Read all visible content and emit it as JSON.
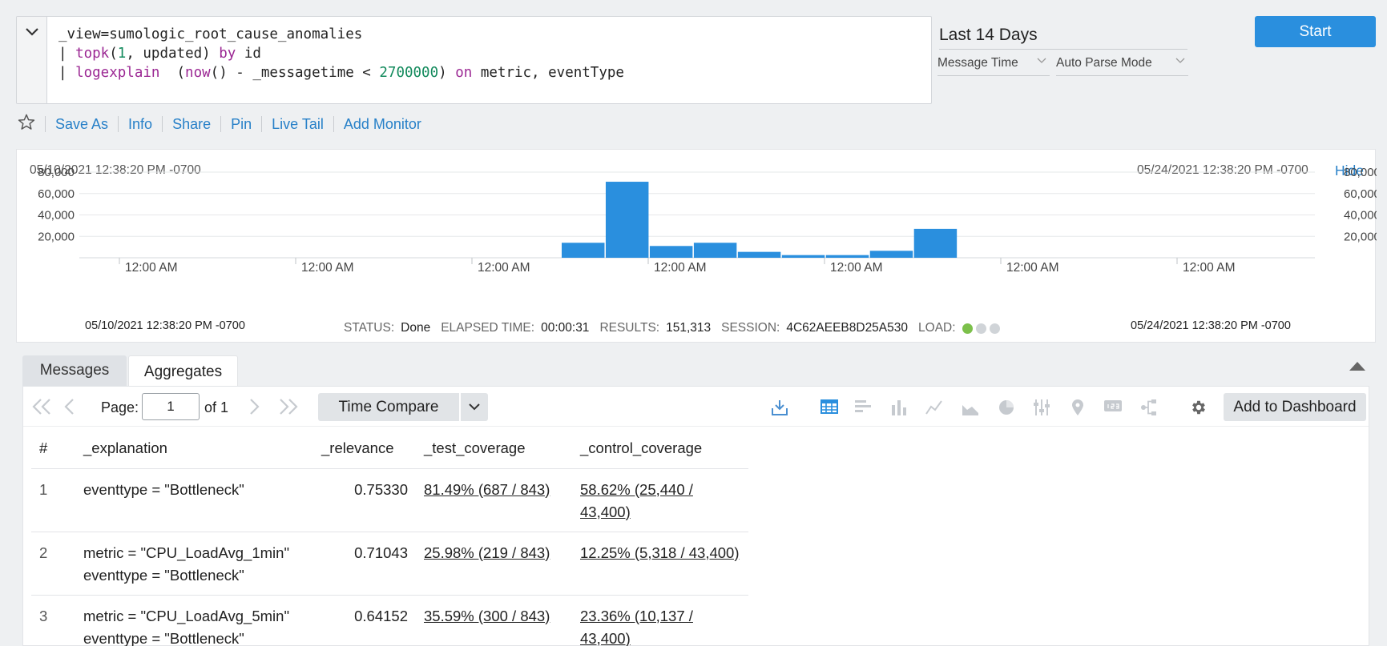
{
  "query": {
    "line1": "_view=sumologic_root_cause_anomalies",
    "line2": {
      "pipe": "| ",
      "fn": "topk",
      "args_open": "(",
      "num": "1",
      "args_rest": ", updated) ",
      "by": "by",
      "by_field": " id"
    },
    "line3": {
      "pipe": "| ",
      "fn": "logexplain",
      "pre": "  (",
      "now": "now",
      "mid": "() - _messagetime < ",
      "num": "2700000",
      "close": ") ",
      "on": "on",
      "fields": " metric, eventType"
    }
  },
  "time_range": "Last 14 Days",
  "time_field": "Message Time",
  "parse_mode": "Auto Parse Mode",
  "start_label": "Start",
  "actions": [
    "Save As",
    "Info",
    "Share",
    "Pin",
    "Live Tail",
    "Add Monitor"
  ],
  "histogram": {
    "start_time": "05/10/2021 12:38:20 PM -0700",
    "end_time": "05/24/2021 12:38:20 PM -0700",
    "hide_label": "Hide",
    "footer_start": "05/10/2021 12:38:20 PM -0700",
    "footer_end": "05/24/2021 12:38:20 PM -0700"
  },
  "status": {
    "status_label": "STATUS:",
    "status_value": "Done",
    "elapsed_label": "ELAPSED TIME:",
    "elapsed_value": "00:00:31",
    "results_label": "RESULTS:",
    "results_value": "151,313",
    "session_label": "SESSION:",
    "session_value": "4C62AEEB8D25A530",
    "load_label": "LOAD:"
  },
  "colors": {
    "accent": "#2a8fde",
    "bar": "#2a8fde",
    "progress": "#8cc63e",
    "load_on": "#7cc04b",
    "load_off": "#d0d4d8"
  },
  "tabs": {
    "messages": "Messages",
    "aggregates": "Aggregates"
  },
  "pager": {
    "page_label": "Page:",
    "page_value": "1",
    "of_label": "of 1"
  },
  "time_compare_label": "Time Compare",
  "add_dashboard_label": "Add to Dashboard",
  "table": {
    "columns": [
      "#",
      "_explanation",
      "_relevance",
      "_test_coverage",
      "_control_coverage"
    ],
    "rows": [
      {
        "idx": "1",
        "explanation": [
          "eventtype = \"Bottleneck\""
        ],
        "relevance": "0.75330",
        "test": "81.49% (687 / 843)",
        "control": "58.62% (25,440 / 43,400)"
      },
      {
        "idx": "2",
        "explanation": [
          "metric = \"CPU_LoadAvg_1min\"",
          "eventtype = \"Bottleneck\""
        ],
        "relevance": "0.71043",
        "test": "25.98% (219 / 843)",
        "control": "12.25% (5,318 / 43,400)"
      },
      {
        "idx": "3",
        "explanation": [
          "metric = \"CPU_LoadAvg_5min\"",
          "eventtype = \"Bottleneck\""
        ],
        "relevance": "0.64152",
        "test": "35.59% (300 / 843)",
        "control": "23.36% (10,137 / 43,400)"
      }
    ]
  },
  "chart_data": {
    "type": "bar",
    "ylim": [
      0,
      80000
    ],
    "yticks": [
      "80,000",
      "60,000",
      "40,000",
      "20,000"
    ],
    "ytick_values": [
      80000,
      60000,
      40000,
      20000
    ],
    "xtick_labels": [
      "12:00 AM",
      "12:00 AM",
      "12:00 AM",
      "12:00 AM",
      "12:00 AM",
      "12:00 AM",
      "12:00 AM"
    ],
    "values": [
      0,
      0,
      0,
      0,
      0,
      0,
      0,
      0,
      0,
      0,
      0,
      14000,
      71000,
      11000,
      14000,
      5500,
      2500,
      2500,
      6500,
      27000
    ],
    "xlim_days": [
      0,
      14
    ]
  }
}
